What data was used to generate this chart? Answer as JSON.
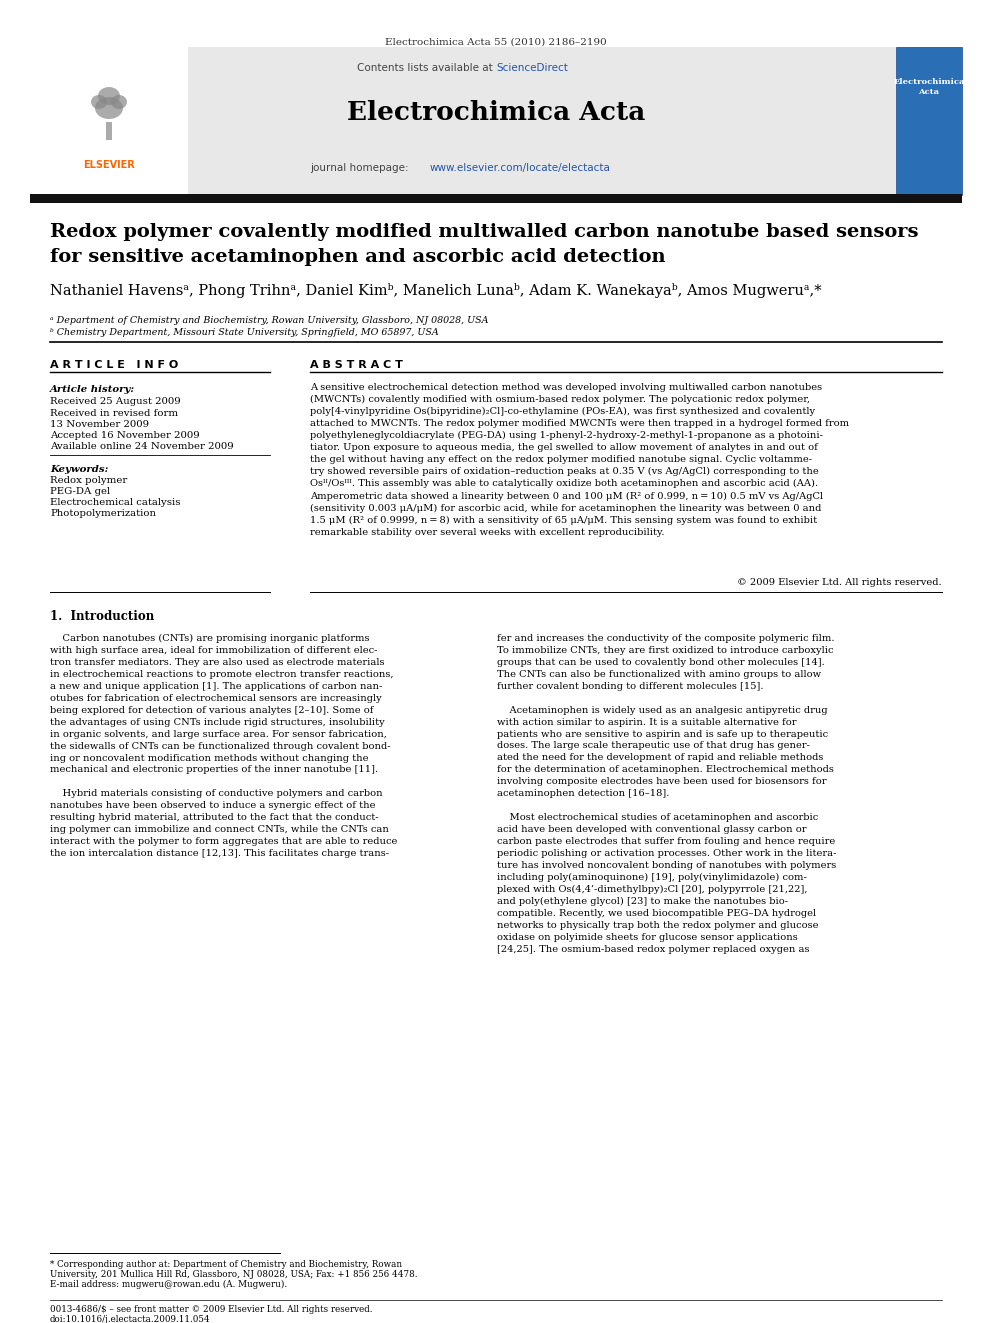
{
  "journal_header": "Electrochimica Acta 55 (2010) 2186–2190",
  "contents_line": "Contents lists available at ScienceDirect",
  "journal_name": "Electrochimica Acta",
  "journal_homepage": "journal homepage: www.elsevier.com/locate/electacta",
  "title_line1": "Redox polymer covalently modified multiwalled carbon nanotube based sensors",
  "title_line2": "for sensitive acetaminophen and ascorbic acid detection",
  "authors": "Nathaniel Havensᵃ, Phong Trihnᵃ, Daniel Kimᵇ, Manelich Lunaᵇ, Adam K. Wanekayaᵇ, Amos Mugweruᵃ,*",
  "affil_a": "ᵃ Department of Chemistry and Biochemistry, Rowan University, Glassboro, NJ 08028, USA",
  "affil_b": "ᵇ Chemistry Department, Missouri State University, Springfield, MO 65897, USA",
  "article_info_header": "A R T I C L E   I N F O",
  "abstract_header": "A B S T R A C T",
  "article_history_label": "Article history:",
  "received": "Received 25 August 2009",
  "received_revised": "Received in revised form",
  "revised_date": "13 November 2009",
  "accepted": "Accepted 16 November 2009",
  "available": "Available online 24 November 2009",
  "keywords_label": "Keywords:",
  "keyword1": "Redox polymer",
  "keyword2": "PEG-DA gel",
  "keyword3": "Electrochemical catalysis",
  "keyword4": "Photopolymerization",
  "abstract_text": "A sensitive electrochemical detection method was developed involving multiwalled carbon nanotubes\n(MWCNTs) covalently modified with osmium-based redox polymer. The polycationic redox polymer,\npoly[4-vinylpyridine Os(bipyridine)₂Cl]-co-ethylamine (POs-EA), was first synthesized and covalently\nattached to MWCNTs. The redox polymer modified MWCNTs were then trapped in a hydrogel formed from\npolyethyleneglycoldiacrylate (PEG-DA) using 1-phenyl-2-hydroxy-2-methyl-1-propanone as a photoini-\ntiator. Upon exposure to aqueous media, the gel swelled to allow movement of analytes in and out of\nthe gel without having any effect on the redox polymer modified nanotube signal. Cyclic voltamme-\ntry showed reversible pairs of oxidation–reduction peaks at 0.35 V (vs Ag/AgCl) corresponding to the\nOsᴵᴵ/Osᴵᴵᴵ. This assembly was able to catalytically oxidize both acetaminophen and ascorbic acid (AA).\nAmperometric data showed a linearity between 0 and 100 μM (R² of 0.999, n = 10) 0.5 mV vs Ag/AgCl\n(sensitivity 0.003 μA/μM) for ascorbic acid, while for acetaminophen the linearity was between 0 and\n1.5 μM (R² of 0.9999, n = 8) with a sensitivity of 65 μA/μM. This sensing system was found to exhibit\nremarkable stability over several weeks with excellent reproducibility.",
  "copyright": "© 2009 Elsevier Ltd. All rights reserved.",
  "intro_header": "1.  Introduction",
  "intro_left": "    Carbon nanotubes (CNTs) are promising inorganic platforms\nwith high surface area, ideal for immobilization of different elec-\ntron transfer mediators. They are also used as electrode materials\nin electrochemical reactions to promote electron transfer reactions,\na new and unique application [1]. The applications of carbon nan-\notubes for fabrication of electrochemical sensors are increasingly\nbeing explored for detection of various analytes [2–10]. Some of\nthe advantages of using CNTs include rigid structures, insolubility\nin organic solvents, and large surface area. For sensor fabrication,\nthe sidewalls of CNTs can be functionalized through covalent bond-\ning or noncovalent modification methods without changing the\nmechanical and electronic properties of the inner nanotube [11].\n\n    Hybrid materials consisting of conductive polymers and carbon\nnanotubes have been observed to induce a synergic effect of the\nresulting hybrid material, attributed to the fact that the conduct-\ning polymer can immobilize and connect CNTs, while the CNTs can\ninteract with the polymer to form aggregates that are able to reduce\nthe ion intercalation distance [12,13]. This facilitates charge trans-",
  "intro_right": "fer and increases the conductivity of the composite polymeric film.\nTo immobilize CNTs, they are first oxidized to introduce carboxylic\ngroups that can be used to covalently bond other molecules [14].\nThe CNTs can also be functionalized with amino groups to allow\nfurther covalent bonding to different molecules [15].\n\n    Acetaminophen is widely used as an analgesic antipyretic drug\nwith action similar to aspirin. It is a suitable alternative for\npatients who are sensitive to aspirin and is safe up to therapeutic\ndoses. The large scale therapeutic use of that drug has gener-\nated the need for the development of rapid and reliable methods\nfor the determination of acetaminophen. Electrochemical methods\ninvolving composite electrodes have been used for biosensors for\nacetaminophen detection [16–18].\n\n    Most electrochemical studies of acetaminophen and ascorbic\nacid have been developed with conventional glassy carbon or\ncarbon paste electrodes that suffer from fouling and hence require\nperiodic polishing or activation processes. Other work in the litera-\nture has involved noncovalent bonding of nanotubes with polymers\nincluding poly(aminoquinone) [19], poly(vinylimidazole) com-\nplexed with Os(4,4’-dimethylbpy)₂Cl [20], polypyrrole [21,22],\nand poly(ethylene glycol) [23] to make the nanotubes bio-\ncompatible. Recently, we used biocompatible PEG–DA hydrogel\nnetworks to physically trap both the redox polymer and glucose\noxidase on polyimide sheets for glucose sensor applications\n[24,25]. The osmium-based redox polymer replaced oxygen as",
  "footnote1": "* Corresponding author at: Department of Chemistry and Biochemistry, Rowan",
  "footnote1b": "University, 201 Mullica Hill Rd, Glassboro, NJ 08028, USA; Fax: +1 856 256 4478.",
  "footnote2": "E-mail address: mugweru@rowan.edu (A. Mugweru).",
  "footnote3": "0013-4686/$ – see front matter © 2009 Elsevier Ltd. All rights reserved.",
  "footnote4": "doi:10.1016/j.electacta.2009.11.054",
  "bg_color": "#ffffff",
  "header_bg": "#e8e8e8",
  "dark_bar_color": "#1a1a1a",
  "link_color": "#2255aa",
  "orange_color": "#FF6600"
}
